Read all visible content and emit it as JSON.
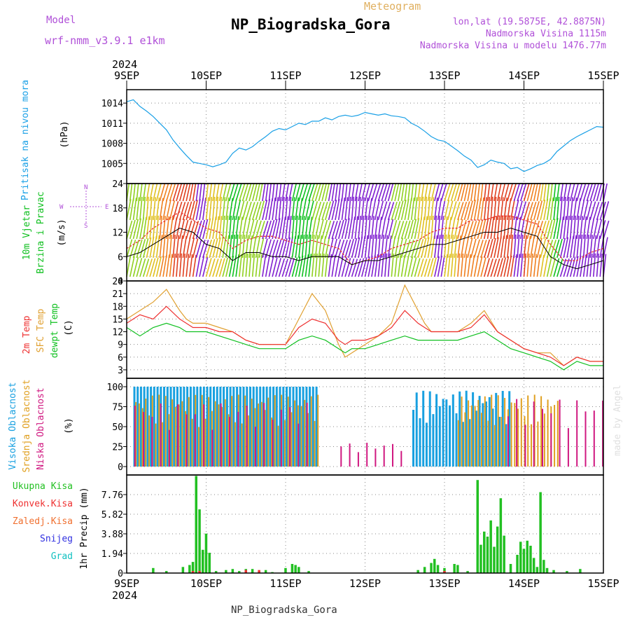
{
  "header": {
    "model_label": "Model",
    "model_name": "wrf-nmm_v3.9.1 e1km",
    "title": "NP_Biogradska_Gora",
    "meteogram": "Meteogram",
    "lonlat": "lon,lat (19.5875E, 42.8875N)",
    "elev": "Nadmorska Visina 1115m",
    "elev_model": "Nadmorska Visina u modelu 1476.77m"
  },
  "footer": {
    "station": "NP_Biogradska_Gora",
    "made_by": "made by Angel"
  },
  "time_axis": {
    "year": "2024",
    "days": [
      "9SEP",
      "10SEP",
      "11SEP",
      "12SEP",
      "13SEP",
      "14SEP",
      "15SEP"
    ],
    "hours": 144
  },
  "colors": {
    "pressure": "#1aa0e6",
    "wind_speed": "#000000",
    "wind_gust": "#e83030",
    "t2m": "#ee3030",
    "sfc": "#e0a030",
    "dew": "#10c020",
    "high_cloud": "#18a0e0",
    "mid_cloud": "#e0a020",
    "low_cloud": "#d01880",
    "total_precip": "#22c022",
    "conv_precip": "#ee3030"
  },
  "panels": {
    "pressure": {
      "ylabel_side": "Pritisak na nivou mora",
      "unit": "(hPa)",
      "ticks": [
        "1014",
        "1011",
        "1008",
        "1005"
      ]
    },
    "wind": {
      "label1": "10m Vjetar",
      "label2": "Brzina i Pravac",
      "unit": "(m/s)",
      "ticks": [
        "24",
        "18",
        "12",
        "6",
        "0"
      ],
      "compass": {
        "n": "N",
        "w": "W",
        "e": "E",
        "s": "S"
      }
    },
    "temp": {
      "label1": "2m Temp",
      "label2": "SFC Temp",
      "label3": "dewpt Temp",
      "unit": "(C)",
      "ticks": [
        "24",
        "21",
        "18",
        "15",
        "12",
        "9",
        "6",
        "3"
      ]
    },
    "cloud": {
      "label1": "Visoka Oblacnost",
      "label2": "Srednja Oblacnost",
      "label3": "Niska Oblacnost",
      "unit": "(%)",
      "ticks": [
        "100",
        "75",
        "50",
        "25",
        "0"
      ]
    },
    "precip": {
      "legend": [
        "Ukupna Kisa",
        "Konvek.Kisa",
        "Zaledj.Kisa",
        "Snijeg",
        "Grad"
      ],
      "unit": "1hr Precip (mm)",
      "ticks": [
        "7.76",
        "5.82",
        "3.88",
        "1.94",
        "0"
      ]
    }
  },
  "chart_data": [
    {
      "type": "line",
      "title": "Pritisak na nivou mora",
      "ylabel": "(hPa)",
      "ylim": [
        1002,
        1016
      ],
      "x_hours": [
        0,
        2,
        4,
        6,
        8,
        10,
        12,
        14,
        16,
        18,
        20,
        22,
        24,
        26,
        28,
        30,
        32,
        34,
        36,
        38,
        40,
        42,
        44,
        46,
        48,
        50,
        52,
        54,
        56,
        58,
        60,
        62,
        64,
        66,
        68,
        70,
        72,
        74,
        76,
        78,
        80,
        82,
        84,
        86,
        88,
        90,
        92,
        94,
        96,
        98,
        100,
        102,
        104,
        106,
        108,
        110,
        112,
        114,
        116,
        118,
        120,
        122,
        124,
        126,
        128,
        130,
        132,
        134,
        136,
        138,
        140,
        142,
        144
      ],
      "series": [
        {
          "values": [
            1014.2,
            1014.5,
            1013.5,
            1012.8,
            1012.0,
            1011.0,
            1010.0,
            1008.5,
            1007.3,
            1006.2,
            1005.2,
            1005.0,
            1004.8,
            1004.5,
            1004.8,
            1005.2,
            1006.5,
            1007.3,
            1007.0,
            1007.5,
            1008.3,
            1009.0,
            1009.8,
            1010.2,
            1010.0,
            1010.5,
            1011.0,
            1010.8,
            1011.3,
            1011.3,
            1011.8,
            1011.5,
            1012.0,
            1012.2,
            1012.0,
            1012.2,
            1012.6,
            1012.4,
            1012.2,
            1012.4,
            1012.1,
            1012.0,
            1011.8,
            1011.0,
            1010.5,
            1009.8,
            1009.0,
            1008.5,
            1008.3,
            1007.6,
            1006.9,
            1006.1,
            1005.5,
            1004.4,
            1004.8,
            1005.5,
            1005.2,
            1005.0,
            1004.2,
            1004.4,
            1003.8,
            1004.2,
            1004.7,
            1005.0,
            1005.6,
            1006.8,
            1007.6,
            1008.4,
            1009.0,
            1009.5,
            1010.0,
            1010.5,
            1010.4
          ]
        }
      ]
    },
    {
      "type": "line",
      "title": "10m Vjetar Brzina i Pravac",
      "ylabel": "(m/s)",
      "ylim": [
        0,
        24
      ],
      "x_hours": [
        0,
        4,
        8,
        12,
        16,
        20,
        24,
        28,
        32,
        36,
        40,
        44,
        48,
        52,
        56,
        60,
        64,
        68,
        72,
        76,
        80,
        84,
        88,
        92,
        96,
        100,
        104,
        108,
        112,
        116,
        120,
        124,
        128,
        132,
        136,
        140,
        144
      ],
      "series": [
        {
          "name": "speed",
          "values": [
            6,
            7,
            9,
            11,
            13,
            12,
            9,
            8,
            5,
            7,
            7,
            6,
            6,
            5,
            6,
            6,
            6,
            4,
            5,
            5,
            6,
            7,
            8,
            9,
            9,
            10,
            11,
            12,
            12,
            13,
            12,
            11,
            6,
            4,
            3,
            4,
            5
          ]
        },
        {
          "name": "gust",
          "values": [
            8,
            10,
            13,
            15,
            17,
            15,
            13,
            12,
            8,
            10,
            11,
            11,
            10,
            9,
            10,
            9,
            8,
            4,
            5,
            6,
            8,
            9,
            10,
            12,
            13,
            13,
            15,
            15,
            16,
            16,
            15,
            14,
            9,
            5,
            5,
            7,
            8
          ]
        }
      ]
    },
    {
      "type": "line",
      "title": "Temperatures",
      "ylabel": "(C)",
      "ylim": [
        1,
        24
      ],
      "x_hours": [
        0,
        4,
        8,
        12,
        16,
        18,
        20,
        24,
        28,
        32,
        36,
        40,
        44,
        48,
        52,
        56,
        60,
        64,
        66,
        68,
        72,
        76,
        80,
        84,
        88,
        90,
        92,
        96,
        100,
        104,
        108,
        112,
        116,
        120,
        124,
        128,
        132,
        136,
        140,
        144
      ],
      "series": [
        {
          "name": "2m Temp",
          "values": [
            14,
            16,
            15,
            18,
            15,
            14,
            13,
            13,
            12,
            12,
            10,
            9,
            9,
            9,
            13,
            15,
            14,
            10,
            9,
            10,
            10,
            11,
            13,
            17,
            14,
            13,
            12,
            12,
            12,
            13,
            16,
            12,
            10,
            8,
            7,
            6,
            4,
            6,
            5,
            5
          ]
        },
        {
          "name": "SFC Temp",
          "values": [
            15,
            17,
            19,
            22,
            17,
            15,
            14,
            14,
            13,
            12,
            10,
            9,
            9,
            9,
            15,
            21,
            17,
            9,
            6,
            7,
            9,
            11,
            14,
            23,
            17,
            14,
            12,
            12,
            12,
            14,
            17,
            12,
            10,
            8,
            7,
            7,
            4,
            6,
            5,
            5
          ]
        },
        {
          "name": "dewpt Temp",
          "values": [
            13,
            11,
            13,
            14,
            13,
            12,
            12,
            12,
            11,
            10,
            9,
            8,
            8,
            8,
            10,
            11,
            10,
            8,
            7,
            8,
            8,
            9,
            10,
            11,
            10,
            10,
            10,
            10,
            10,
            11,
            12,
            10,
            8,
            7,
            6,
            5,
            3,
            5,
            4,
            4
          ]
        }
      ]
    },
    {
      "type": "bar",
      "title": "Oblacnost",
      "ylabel": "(%)",
      "ylim": [
        0,
        100
      ],
      "segments": [
        {
          "name": "Visoka Oblacnost",
          "from_hour": 2,
          "to_hour": 57,
          "value": 100
        },
        {
          "name": "Visoka Oblacnost",
          "from_hour": 86,
          "to_hour": 115,
          "value": 95
        },
        {
          "name": "Srednja Oblacnost",
          "from_hour": 2,
          "to_hour": 57,
          "value": 90
        },
        {
          "name": "Srednja Oblacnost",
          "from_hour": 100,
          "to_hour": 130,
          "value": 90
        },
        {
          "name": "Niska Oblacnost",
          "from_hour": 2,
          "to_hour": 55,
          "value": 80
        },
        {
          "name": "Niska Oblacnost",
          "from_hour": 64,
          "to_hour": 84,
          "value": 30
        },
        {
          "name": "Niska Oblacnost",
          "from_hour": 115,
          "to_hour": 144,
          "value": 85
        }
      ]
    },
    {
      "type": "bar",
      "title": "1hr Precip",
      "ylabel": "1hr Precip (mm)",
      "ylim": [
        0,
        9.7
      ],
      "series": [
        {
          "name": "Ukupna Kisa",
          "points": [
            [
              8,
              0.5
            ],
            [
              12,
              0.2
            ],
            [
              17,
              0.6
            ],
            [
              19,
              0.8
            ],
            [
              20,
              1.1
            ],
            [
              21,
              9.6
            ],
            [
              22,
              6.3
            ],
            [
              23,
              2.3
            ],
            [
              24,
              3.9
            ],
            [
              25,
              2.0
            ],
            [
              27,
              0.2
            ],
            [
              30,
              0.3
            ],
            [
              32,
              0.4
            ],
            [
              34,
              0.2
            ],
            [
              36,
              0.4
            ],
            [
              38,
              0.4
            ],
            [
              40,
              0.2
            ],
            [
              42,
              0.3
            ],
            [
              44,
              0.1
            ],
            [
              48,
              0.5
            ],
            [
              50,
              0.9
            ],
            [
              51,
              0.8
            ],
            [
              52,
              0.6
            ],
            [
              55,
              0.2
            ],
            [
              88,
              0.3
            ],
            [
              90,
              0.6
            ],
            [
              92,
              1.0
            ],
            [
              93,
              1.4
            ],
            [
              94,
              0.8
            ],
            [
              96,
              0.5
            ],
            [
              99,
              0.9
            ],
            [
              100,
              0.8
            ],
            [
              103,
              0.2
            ],
            [
              106,
              9.2
            ],
            [
              107,
              2.8
            ],
            [
              108,
              4.1
            ],
            [
              109,
              3.6
            ],
            [
              110,
              5.2
            ],
            [
              111,
              2.6
            ],
            [
              112,
              4.6
            ],
            [
              113,
              7.4
            ],
            [
              114,
              3.7
            ],
            [
              116,
              0.9
            ],
            [
              118,
              1.8
            ],
            [
              119,
              3.1
            ],
            [
              120,
              2.4
            ],
            [
              121,
              3.2
            ],
            [
              122,
              2.7
            ],
            [
              123,
              1.5
            ],
            [
              124,
              0.6
            ],
            [
              125,
              8.0
            ],
            [
              126,
              1.3
            ],
            [
              127,
              0.5
            ],
            [
              129,
              0.3
            ],
            [
              133,
              0.2
            ],
            [
              137,
              0.4
            ]
          ]
        },
        {
          "name": "Konvek.Kisa",
          "points": [
            [
              20,
              0.2
            ],
            [
              22,
              0.2
            ],
            [
              36,
              0.3
            ],
            [
              40,
              0.3
            ],
            [
              96,
              0.2
            ]
          ]
        }
      ]
    }
  ]
}
